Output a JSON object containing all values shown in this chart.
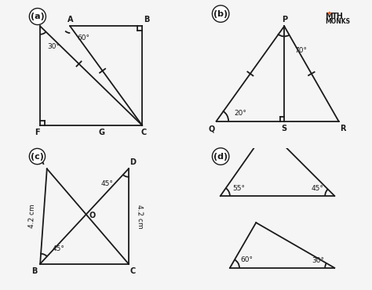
{
  "bg_color": "#f5f5f5",
  "panel_bg": "#ffffff",
  "line_color": "#1a1a1a",
  "text_color": "#1a1a1a",
  "grid_line_color": "#cccccc",
  "logo_A_color": "#e8622a",
  "logo_text_color": "#1a1a1a",
  "fig_width": 4.74,
  "fig_height": 3.7,
  "panels": [
    "a",
    "b",
    "c",
    "d"
  ]
}
